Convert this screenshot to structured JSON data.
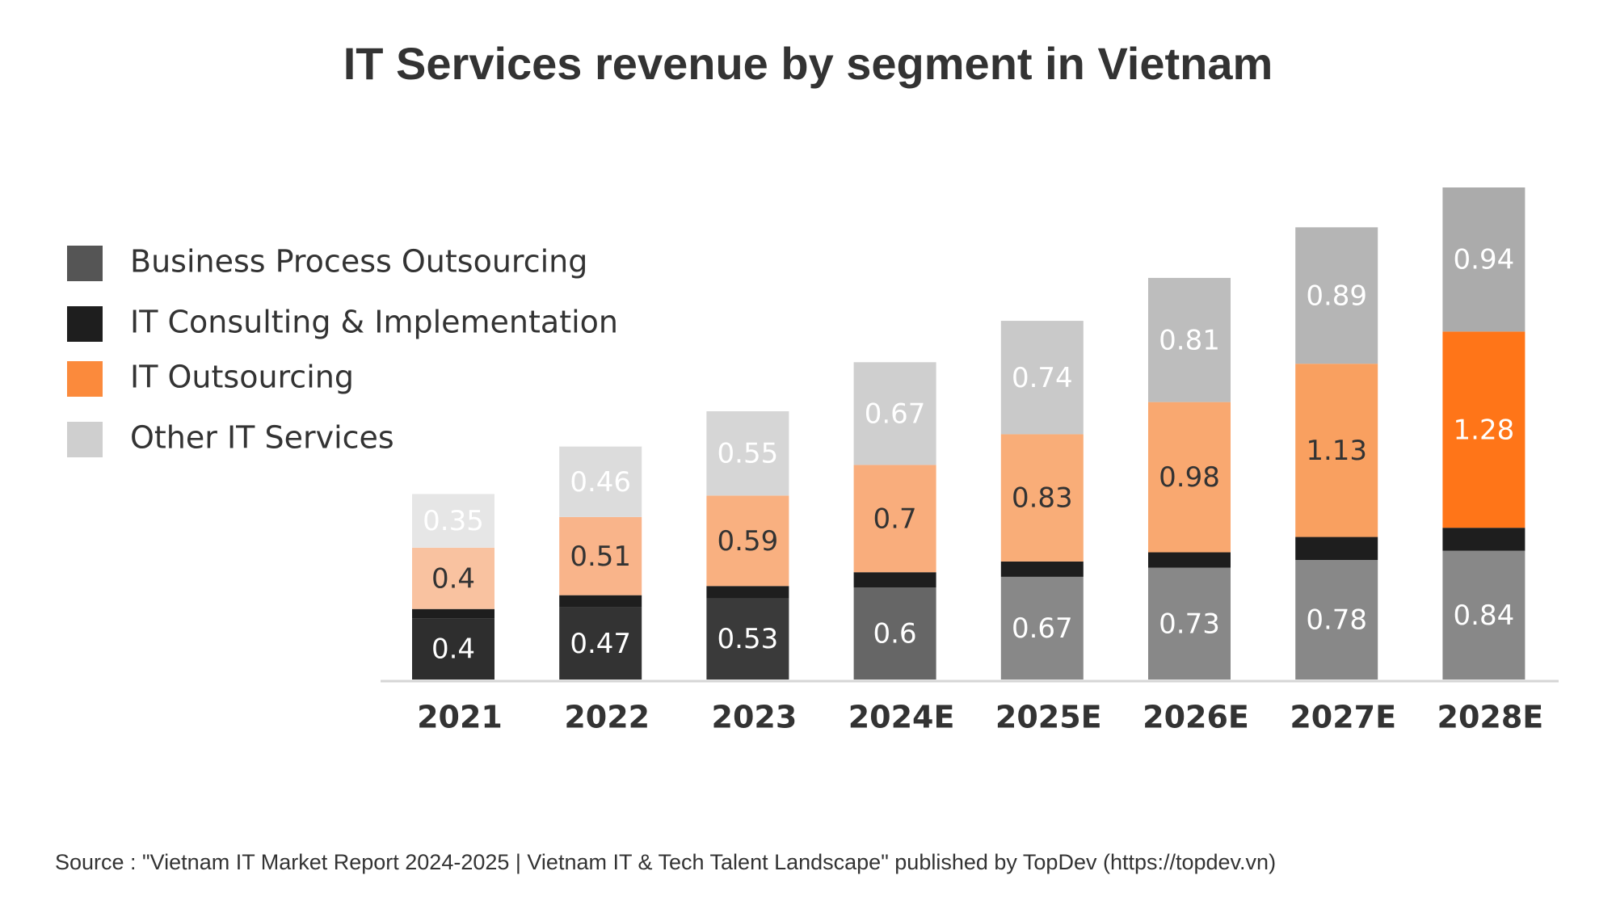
{
  "chart_data": {
    "type": "stacked-bar",
    "title": "IT Services revenue by segment in Vietnam",
    "categories": [
      "2021",
      "2022",
      "2023",
      "2024E",
      "2025E",
      "2026E",
      "2027E",
      "2028E"
    ],
    "series": [
      {
        "name": "Business Process Outsourcing",
        "color": "#555555",
        "colors": [
          "#2e2e2e",
          "#333333",
          "#3a3a3a",
          "#666666",
          "#888888",
          "#888888",
          "#888888",
          "#888888"
        ],
        "values": [
          0.4,
          0.47,
          0.53,
          0.6,
          0.67,
          0.73,
          0.78,
          0.84
        ]
      },
      {
        "name": "IT Consulting & Implementation",
        "color": "#1e1e1e",
        "colors": [
          "#1e1e1e",
          "#1e1e1e",
          "#1e1e1e",
          "#1e1e1e",
          "#1e1e1e",
          "#1e1e1e",
          "#1e1e1e",
          "#1e1e1e"
        ],
        "values": [
          0.06,
          0.08,
          0.08,
          0.1,
          0.1,
          0.1,
          0.15,
          0.15
        ]
      },
      {
        "name": "IT Outsourcing",
        "color": "#fb8a3c",
        "colors": [
          "#f9c2a0",
          "#f9b48a",
          "#f9b080",
          "#f9ad7c",
          "#f9ad78",
          "#f9a870",
          "#f9a060",
          "#ff7518"
        ],
        "values": [
          0.4,
          0.51,
          0.59,
          0.7,
          0.83,
          0.98,
          1.13,
          1.28
        ]
      },
      {
        "name": "Other IT Services",
        "color": "#cfcfcf",
        "colors": [
          "#e6e6e6",
          "#dcdcdc",
          "#d6d6d6",
          "#cfcfcf",
          "#c9c9c9",
          "#bdbdbd",
          "#b5b5b5",
          "#ababab"
        ],
        "values": [
          0.35,
          0.46,
          0.55,
          0.67,
          0.74,
          0.81,
          0.89,
          0.94
        ]
      }
    ],
    "data_labels": [
      true,
      false,
      true,
      true
    ],
    "legend": "left",
    "source": "Source : \"Vietnam IT Market Report 2024-2025 | Vietnam IT & Tech Talent Landscape\" published by TopDev (https://topdev.vn)"
  }
}
